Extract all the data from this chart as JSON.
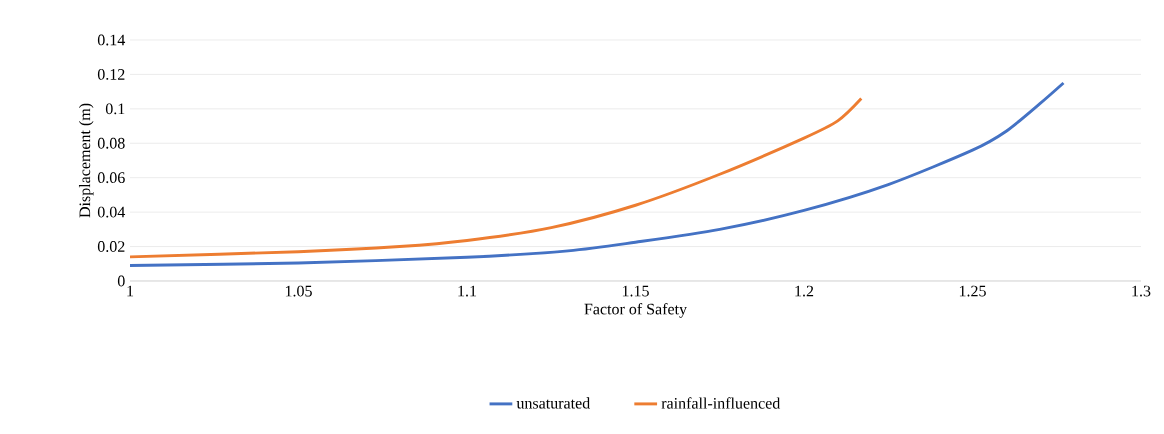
{
  "chart_data": {
    "type": "line",
    "xlabel": "Factor of Safety",
    "ylabel": "Displacement (m)",
    "series": [
      {
        "name": "unsaturated",
        "color": "#4472c4",
        "x": [
          1.0,
          1.05,
          1.1,
          1.13,
          1.15,
          1.175,
          1.2,
          1.225,
          1.25,
          1.26,
          1.27,
          1.277
        ],
        "values": [
          0.009,
          0.0105,
          0.0138,
          0.0175,
          0.0225,
          0.03,
          0.041,
          0.056,
          0.076,
          0.087,
          0.103,
          0.115
        ]
      },
      {
        "name": "rainfall-influenced",
        "color": "#ed7d31",
        "x": [
          1.0,
          1.05,
          1.08,
          1.1,
          1.125,
          1.15,
          1.175,
          1.2,
          1.21,
          1.217
        ],
        "values": [
          0.014,
          0.017,
          0.02,
          0.0235,
          0.031,
          0.044,
          0.062,
          0.083,
          0.093,
          0.106
        ]
      }
    ],
    "xlim": [
      1,
      1.3
    ],
    "xticks": [
      1,
      1.05,
      1.1,
      1.15,
      1.2,
      1.25,
      1.3
    ],
    "ylim": [
      0,
      0.14
    ],
    "yticks": [
      0,
      0.02,
      0.04,
      0.06,
      0.08,
      0.1,
      0.12,
      0.14
    ],
    "grid": "y",
    "legend": "bottom",
    "marker": "none",
    "line_style": "solid"
  }
}
